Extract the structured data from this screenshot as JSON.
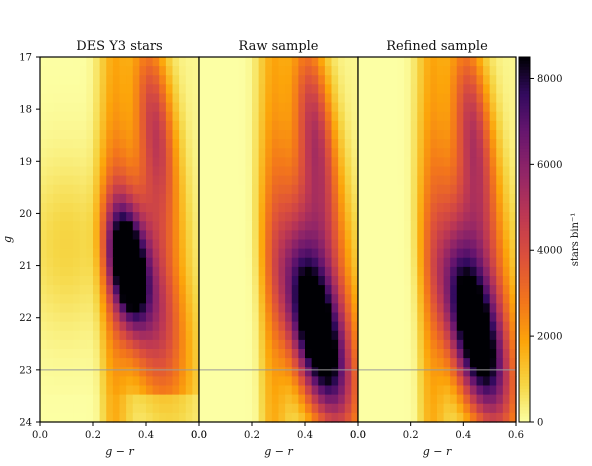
{
  "chart_data": {
    "type": "heatmap",
    "panels": [
      {
        "title": "DES Y3 stars",
        "variant": "des"
      },
      {
        "title": "Raw sample",
        "variant": "raw"
      },
      {
        "title": "Refined sample",
        "variant": "refined"
      }
    ],
    "x_axis": {
      "label": "g − r",
      "range": [
        0.0,
        0.6
      ],
      "ticks_inner": [
        "0.0",
        "0.2",
        "0.4",
        "0.0"
      ],
      "ticks_last": [
        "0.0",
        "0.2",
        "0.4",
        "0.6"
      ],
      "values": [
        0.0,
        0.2,
        0.4,
        0.6
      ]
    },
    "y_axis": {
      "label": "g",
      "range": [
        24,
        17
      ],
      "ticks": [
        "17",
        "18",
        "19",
        "20",
        "21",
        "22",
        "23",
        "24"
      ],
      "values": [
        17,
        18,
        19,
        20,
        21,
        22,
        23,
        24
      ],
      "inverted": true
    },
    "reference_line": {
      "g": 23.0
    },
    "colorbar": {
      "label": "stars bin⁻¹",
      "range": [
        0,
        8500
      ],
      "ticks": [
        "0",
        "2000",
        "4000",
        "6000",
        "8000"
      ],
      "values": [
        0,
        2000,
        4000,
        6000,
        8000
      ],
      "colormap": "inferno_r"
    },
    "density_model": {
      "grid_cols": 24,
      "grid_rows": 40,
      "upper_sequence_peak_gr": 0.41,
      "main_sequence_turnoff_gr": 0.3,
      "des_peak": {
        "g": 21.0,
        "gr": 0.33,
        "value": 8200
      },
      "sample_peak": {
        "g": 22.5,
        "gr": 0.45,
        "value": 6800
      }
    }
  }
}
